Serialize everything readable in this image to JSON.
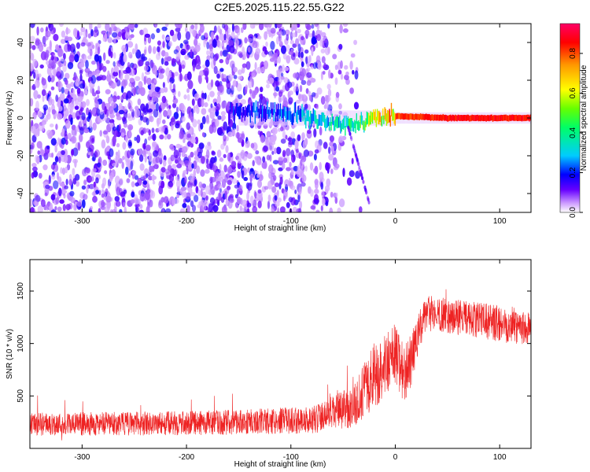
{
  "title": "C2E5.2025.115.22.55.G22",
  "chart_data": [
    {
      "type": "heatmap",
      "xlabel": "Height of straight line (km)",
      "ylabel": "Frequency (Hz)",
      "xlim": [
        -350,
        130
      ],
      "ylim": [
        -50,
        50
      ],
      "x_ticks": [
        "-300",
        "-200",
        "-100",
        "0",
        "100"
      ],
      "y_ticks": [
        "-40",
        "-20",
        "0",
        "20",
        "40"
      ],
      "colorbar": {
        "label": "Normalized spectral amplitude",
        "range": [
          0,
          0.95
        ],
        "ticks": [
          "0.0",
          "0.2",
          "0.4",
          "0.6",
          "0.8"
        ],
        "colors": [
          "#ffffff",
          "#cc99ff",
          "#6600ff",
          "#0000ff",
          "#00ccff",
          "#00ff66",
          "#66ff00",
          "#ffff00",
          "#ff9900",
          "#ff0000",
          "#ff0066"
        ]
      },
      "ridge": [
        {
          "x": -150,
          "f": 3,
          "a": 0.2
        },
        {
          "x": -120,
          "f": 3,
          "a": 0.25
        },
        {
          "x": -90,
          "f": 1,
          "a": 0.3
        },
        {
          "x": -60,
          "f": -2,
          "a": 0.4
        },
        {
          "x": -40,
          "f": -4,
          "a": 0.45
        },
        {
          "x": -25,
          "f": 0,
          "a": 0.6
        },
        {
          "x": -10,
          "f": 1,
          "a": 0.75
        },
        {
          "x": 0,
          "f": 1,
          "a": 0.85
        },
        {
          "x": 50,
          "f": 0,
          "a": 0.9
        },
        {
          "x": 130,
          "f": 0,
          "a": 0.9
        }
      ]
    },
    {
      "type": "line",
      "xlabel": "Height of straight line (km)",
      "ylabel": "SNR (10 * v/v)",
      "xlim": [
        -350,
        130
      ],
      "ylim": [
        0,
        1800
      ],
      "x_ticks": [
        "-300",
        "-200",
        "-100",
        "0",
        "100"
      ],
      "y_ticks": [
        "500",
        "1000",
        "1500"
      ],
      "color": "#ee2222",
      "envelope": [
        {
          "x": -350,
          "mean": 230,
          "spread": 110
        },
        {
          "x": -200,
          "mean": 240,
          "spread": 115
        },
        {
          "x": -80,
          "mean": 270,
          "spread": 130
        },
        {
          "x": -40,
          "mean": 400,
          "spread": 200
        },
        {
          "x": -20,
          "mean": 700,
          "spread": 320
        },
        {
          "x": 0,
          "mean": 900,
          "spread": 300
        },
        {
          "x": 10,
          "mean": 700,
          "spread": 300
        },
        {
          "x": 30,
          "mean": 1300,
          "spread": 160
        },
        {
          "x": 60,
          "mean": 1250,
          "spread": 170
        },
        {
          "x": 130,
          "mean": 1150,
          "spread": 180
        }
      ]
    }
  ]
}
